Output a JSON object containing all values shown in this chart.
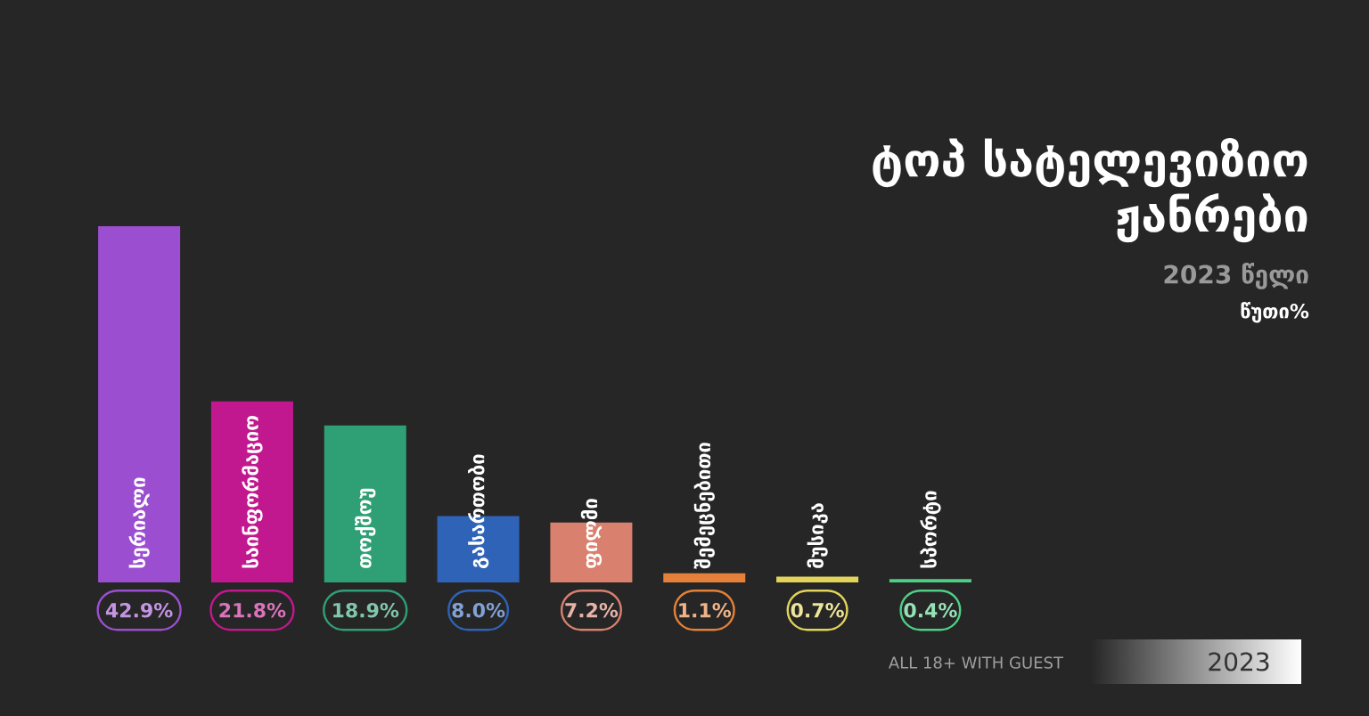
{
  "chart_data": {
    "type": "bar",
    "title": "ტოპ სატელევიზიო ჟანრები",
    "subtitle": "2023 წელი",
    "categories": [
      "სერიალი",
      "საინფორმაციო",
      "თოქშოუ",
      "გასართობი",
      "ფილმი",
      "შემეცნებითი",
      "მუსიკა",
      "სპორტი"
    ],
    "values": [
      42.9,
      21.8,
      18.9,
      8.0,
      7.2,
      1.1,
      0.7,
      0.4
    ],
    "value_labels": [
      "42.9%",
      "21.8%",
      "18.9%",
      "8.0%",
      "7.2%",
      "1.1%",
      "0.7%",
      "0.4%"
    ],
    "colors": [
      "#9b4fd0",
      "#c2188f",
      "#2fa075",
      "#2f63b8",
      "#d9806e",
      "#e5803a",
      "#e2d35a",
      "#4fcf86"
    ],
    "annotations": [
      "წუთი%",
      "ALL 18+ WITH GUEST",
      "2023"
    ],
    "legend": false
  }
}
